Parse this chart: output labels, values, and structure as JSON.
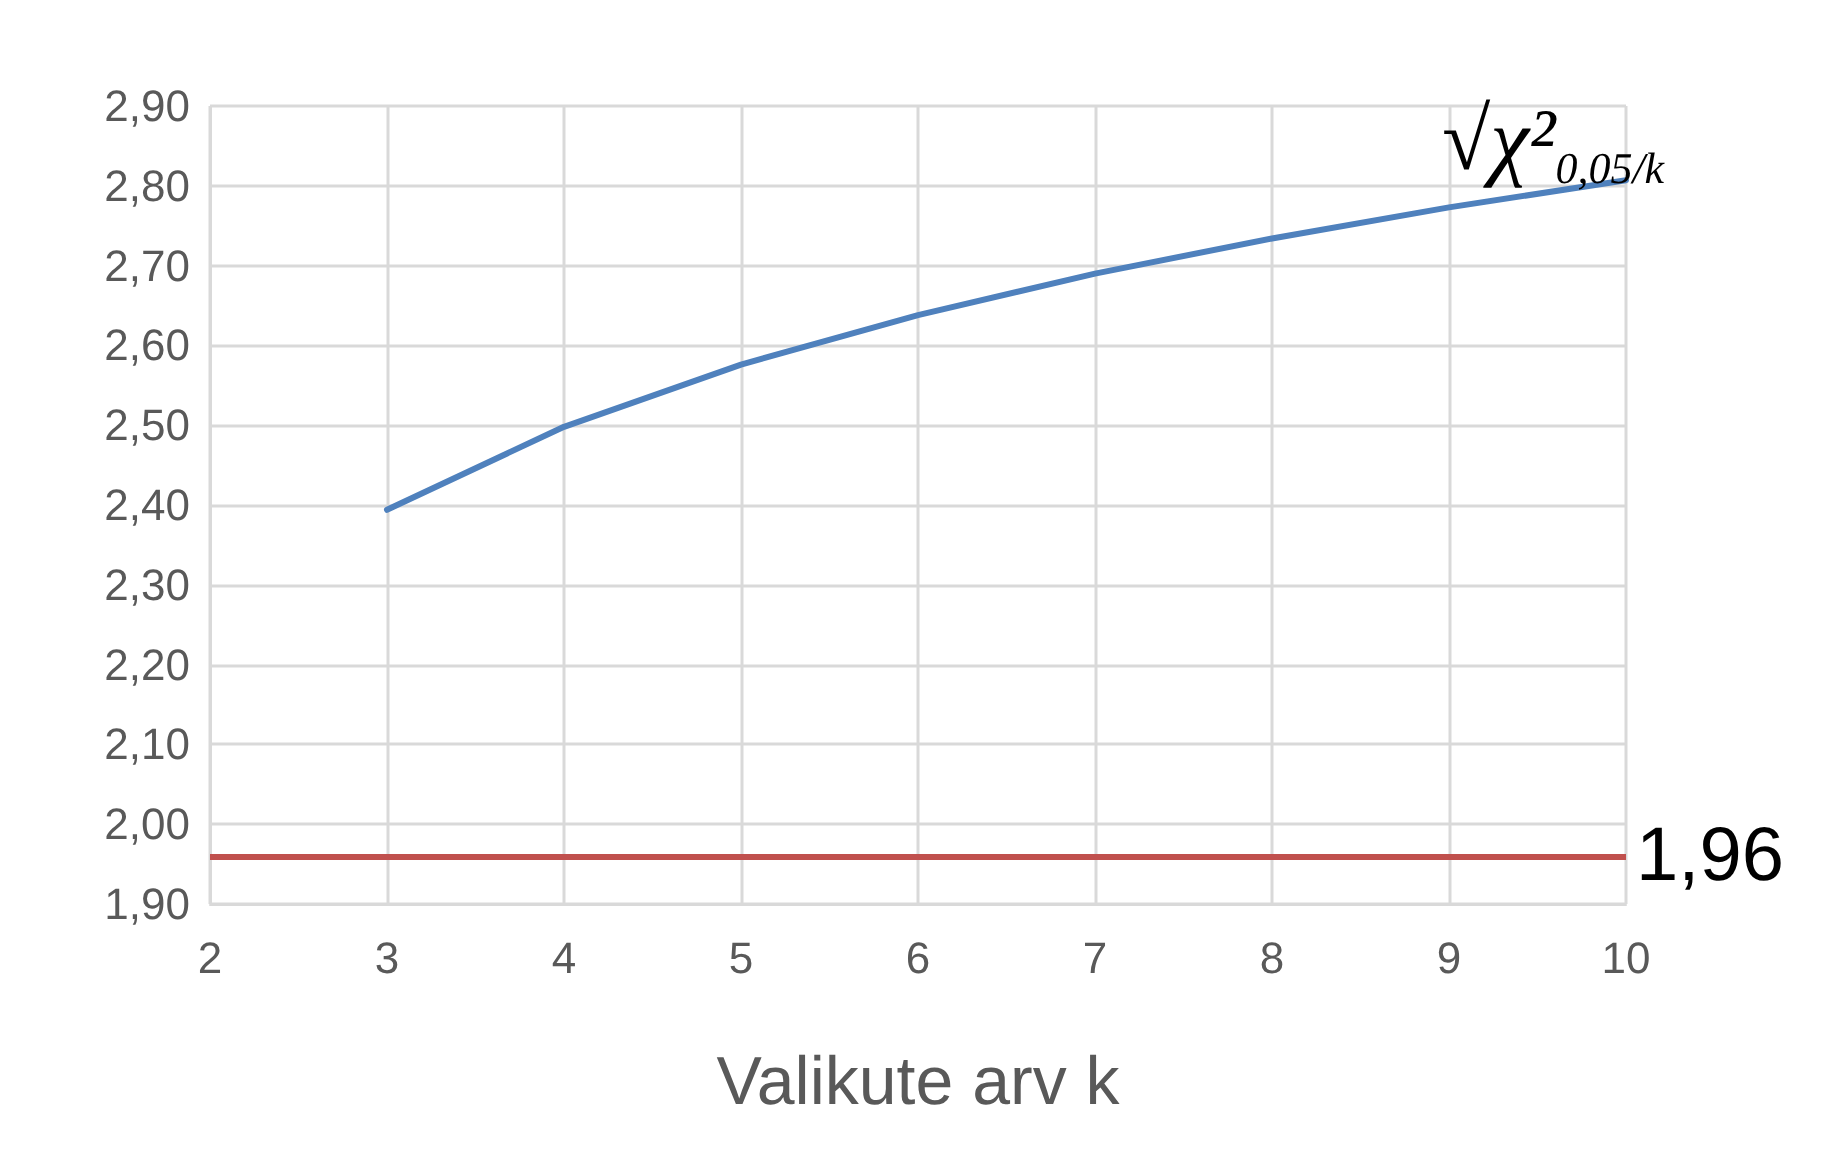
{
  "chart_data": {
    "type": "line",
    "xlabel": "Valikute arv k",
    "x": [
      3,
      4,
      5,
      6,
      7,
      8,
      9,
      10
    ],
    "series": [
      {
        "name": "√χ²$_{0,05/k}$",
        "color": "#4f81bd",
        "values": [
          2.394,
          2.498,
          2.576,
          2.638,
          2.69,
          2.734,
          2.773,
          2.807
        ]
      }
    ],
    "xlim": [
      2,
      10
    ],
    "xticks": [
      2,
      3,
      4,
      5,
      6,
      7,
      8,
      9,
      10
    ],
    "ylim": [
      1.9,
      2.9
    ],
    "yticks": [
      {
        "value": 1.9,
        "label": "1,90"
      },
      {
        "value": 2.0,
        "label": "2,00"
      },
      {
        "value": 2.1,
        "label": "2,10"
      },
      {
        "value": 2.2,
        "label": "2,20"
      },
      {
        "value": 2.3,
        "label": "2,30"
      },
      {
        "value": 2.4,
        "label": "2,40"
      },
      {
        "value": 2.5,
        "label": "2,50"
      },
      {
        "value": 2.6,
        "label": "2,60"
      },
      {
        "value": 2.7,
        "label": "2,70"
      },
      {
        "value": 2.8,
        "label": "2,80"
      },
      {
        "value": 2.9,
        "label": "2,90"
      }
    ],
    "ref_lines": [
      {
        "axis": "y",
        "value": 1.96,
        "label": "1,96",
        "color": "#c0504d"
      }
    ],
    "grid": true,
    "marker": "none",
    "line_style": "solid"
  }
}
